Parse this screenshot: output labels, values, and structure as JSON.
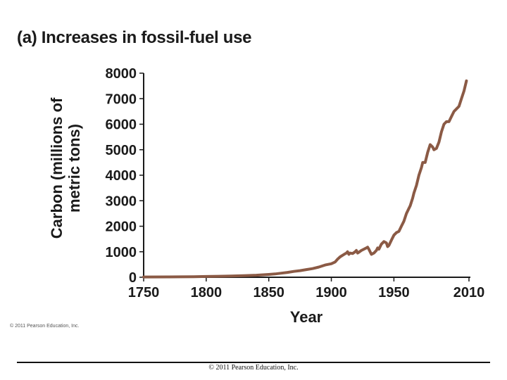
{
  "figure": {
    "title": "(a) Increases in fossil-fuel use",
    "copyright_small": "© 2011 Pearson Education, Inc.",
    "footer": "© 2011 Pearson Education, Inc."
  },
  "colors": {
    "line": "#8b5a45",
    "axis": "#1a1a1a"
  },
  "chart_data": {
    "type": "line",
    "title": "(a) Increases in fossil-fuel use",
    "xlabel": "Year",
    "ylabel_lines": [
      "Carbon (millions of",
      "metric tons)"
    ],
    "xlim": [
      1750,
      2010
    ],
    "ylim": [
      0,
      8000
    ],
    "x_ticks": [
      1750,
      1800,
      1850,
      1900,
      1950,
      2010
    ],
    "y_ticks": [
      0,
      1000,
      2000,
      3000,
      4000,
      5000,
      6000,
      7000,
      8000
    ],
    "grid": false,
    "series": [
      {
        "x": [
          1750,
          1770,
          1790,
          1800,
          1810,
          1820,
          1830,
          1840,
          1850,
          1855,
          1860,
          1865,
          1870,
          1875,
          1880,
          1885,
          1890,
          1895,
          1900,
          1903,
          1905,
          1907,
          1909,
          1911,
          1912,
          1913,
          1914,
          1915,
          1917,
          1919,
          1920,
          1921,
          1922,
          1924,
          1926,
          1928,
          1929,
          1930,
          1931,
          1932,
          1934,
          1936,
          1937,
          1938,
          1940,
          1942,
          1944,
          1945,
          1946,
          1948,
          1950,
          1952,
          1954,
          1956,
          1958,
          1960,
          1962,
          1963,
          1965,
          1966,
          1968,
          1970,
          1972,
          1973,
          1975,
          1977,
          1979,
          1981,
          1982,
          1984,
          1986,
          1988,
          1990,
          1992,
          1994,
          1996,
          1998,
          2000,
          2002,
          2004,
          2006,
          2008
        ],
        "y": [
          10,
          15,
          20,
          30,
          40,
          50,
          60,
          80,
          110,
          130,
          160,
          190,
          230,
          260,
          300,
          340,
          400,
          480,
          530,
          600,
          710,
          800,
          860,
          920,
          950,
          1000,
          900,
          950,
          930,
          1000,
          1050,
          950,
          980,
          1050,
          1100,
          1150,
          1180,
          1100,
          1000,
          900,
          950,
          1050,
          1150,
          1100,
          1300,
          1400,
          1350,
          1200,
          1250,
          1450,
          1650,
          1750,
          1800,
          2000,
          2200,
          2500,
          2700,
          2800,
          3100,
          3300,
          3600,
          4000,
          4300,
          4500,
          4500,
          4900,
          5200,
          5100,
          5000,
          5050,
          5300,
          5700,
          6000,
          6100,
          6100,
          6300,
          6500,
          6600,
          6700,
          7000,
          7300,
          7700
        ]
      }
    ]
  }
}
